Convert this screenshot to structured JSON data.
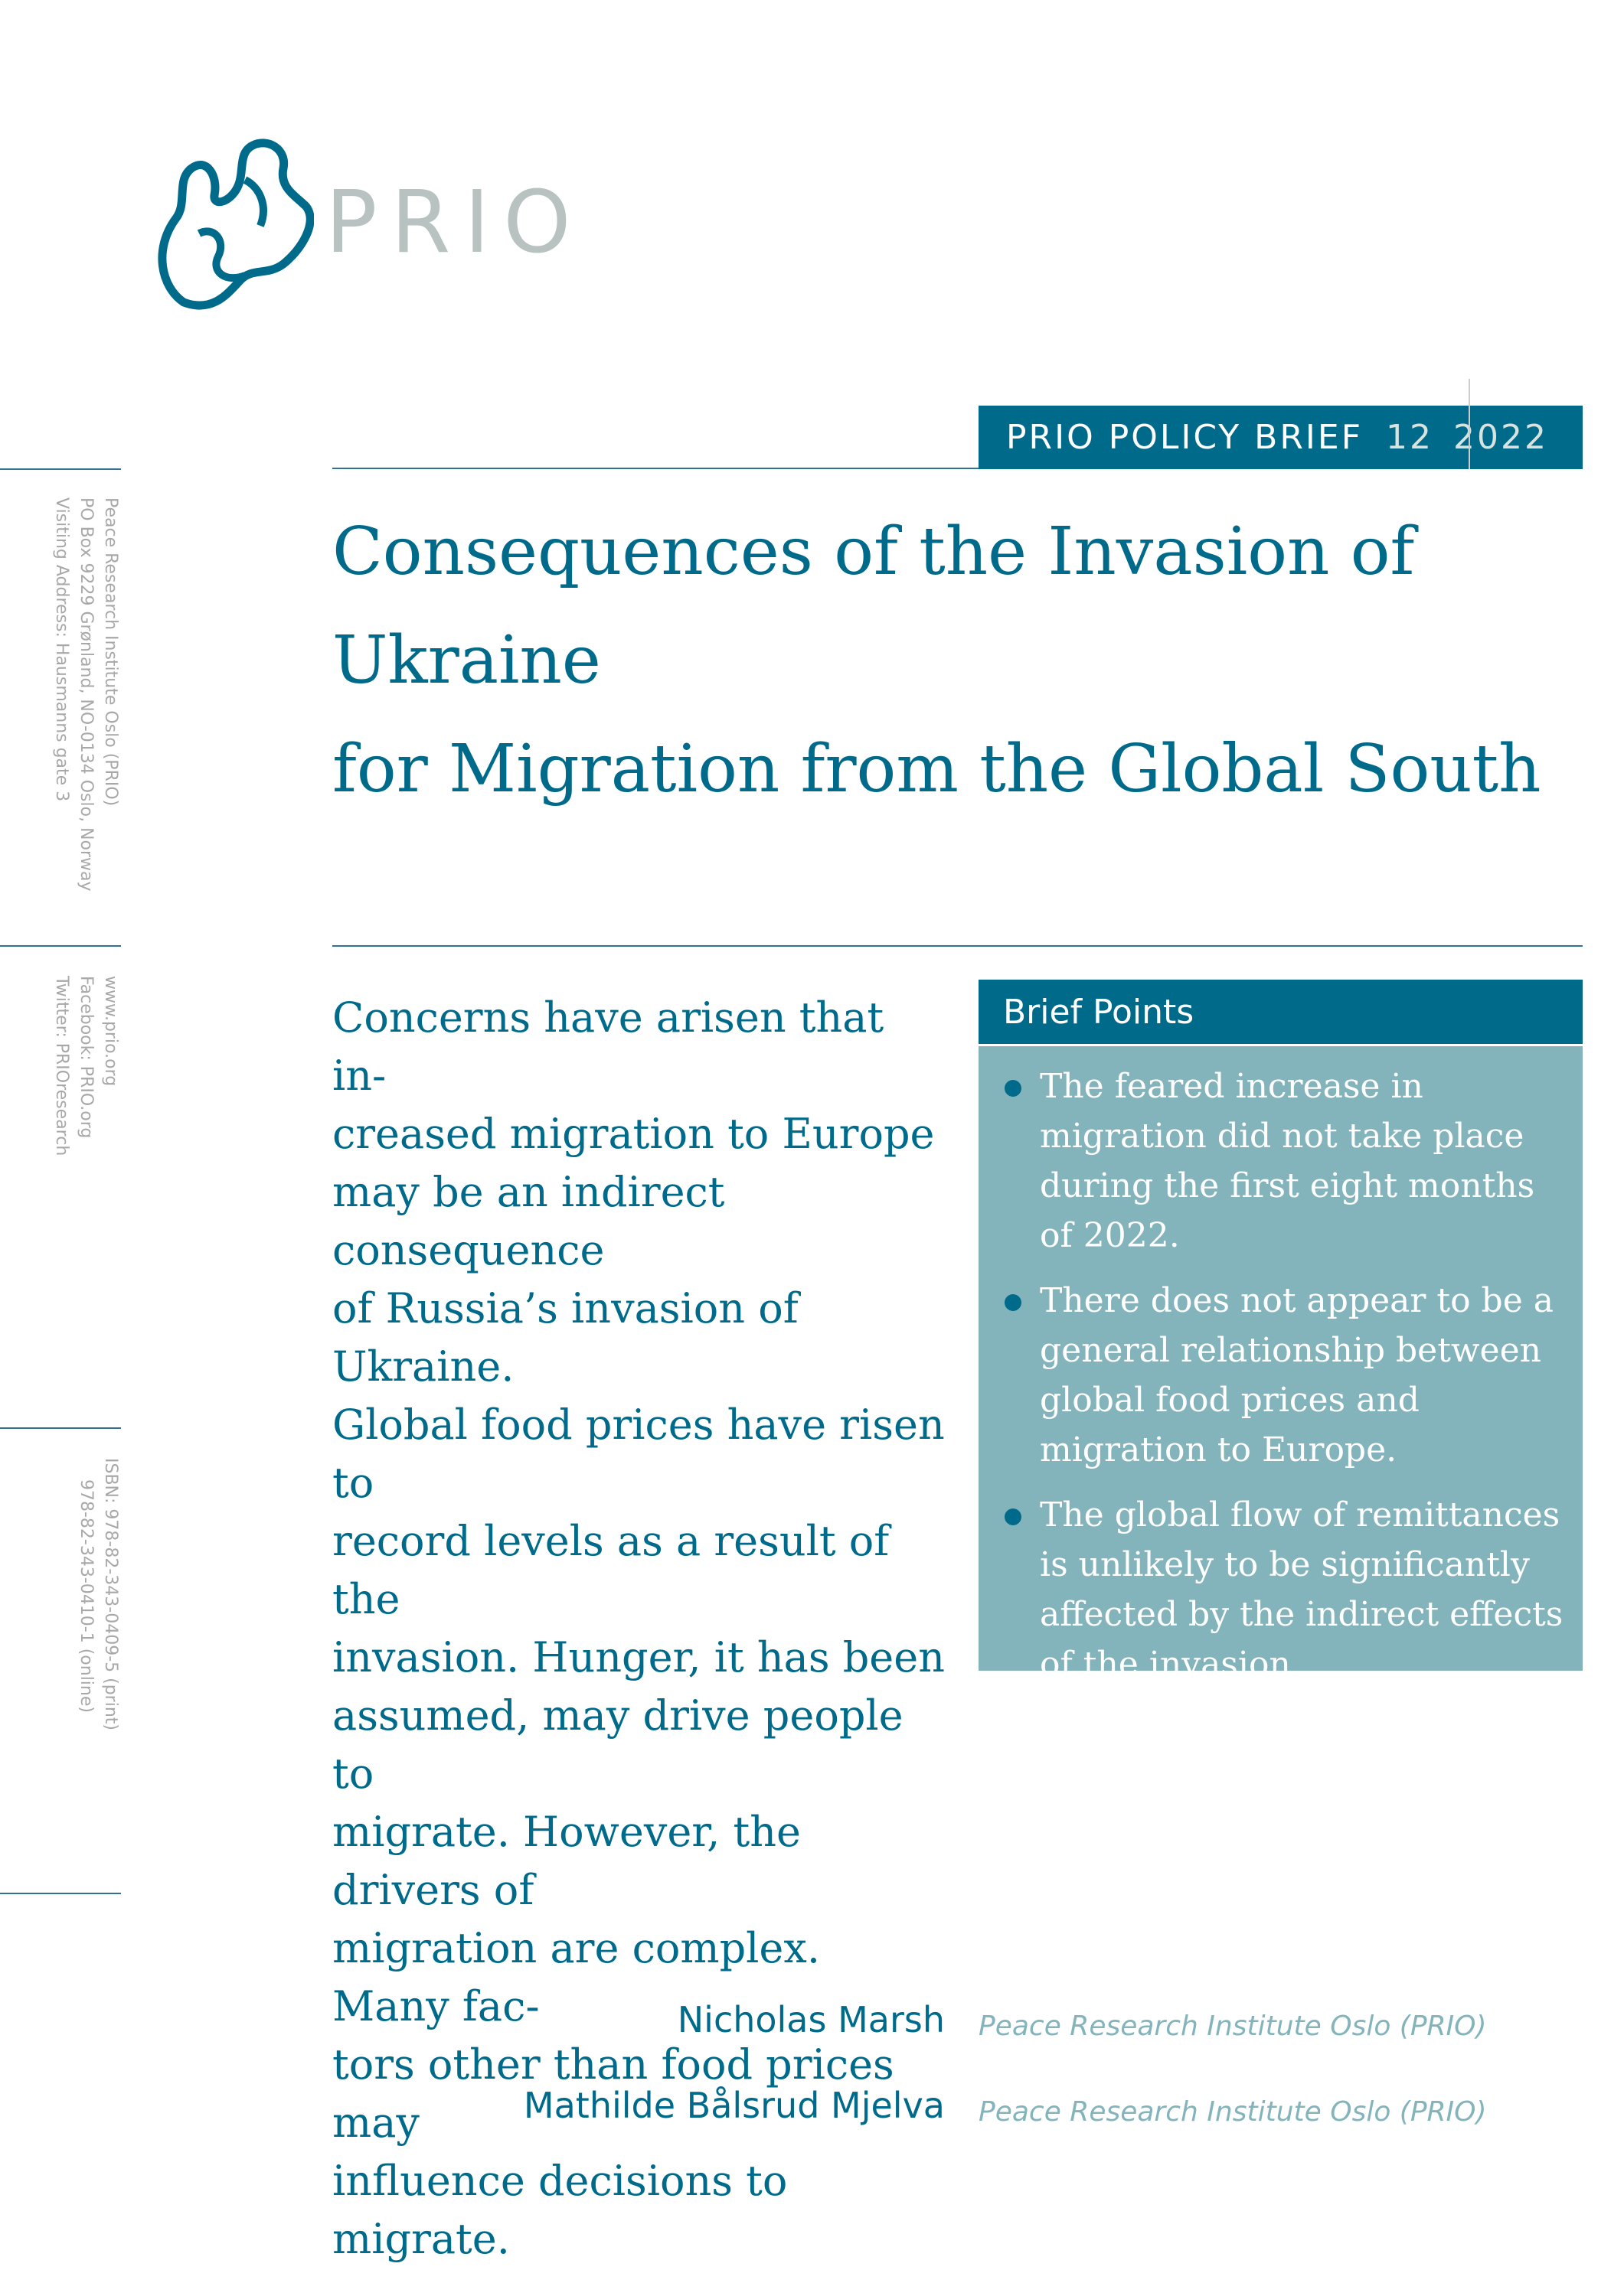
{
  "logo": {
    "text": "PRIO",
    "colors": {
      "mark": "#006a8b",
      "text": "#b8c2c0"
    }
  },
  "banner": {
    "label": "PRIO POLICY BRIEF",
    "number": "12",
    "year": "2022"
  },
  "title": [
    "Consequences of the Invasion of Ukraine",
    "for Migration from the Global South"
  ],
  "sidebar": {
    "address": [
      "Peace Research Institute Oslo (PRIO)",
      "PO Box 9229 Grønland, NO-0134 Oslo, Norway",
      "Visiting Address: Hausmanns gate 3"
    ],
    "web": [
      "www.prio.org",
      "Facebook: PRIO.org",
      "Twitter: PRIOresearch"
    ],
    "isbn": [
      "ISBN: 978-82-343-0409-5 (print)",
      "978-82-343-0410-1 (online)"
    ]
  },
  "intro": [
    "Concerns have arisen that in-",
    "creased migration to Europe",
    "may be an indirect consequence",
    "of Russia’s invasion of Ukraine.",
    "Global food prices have risen to",
    "record levels as a result of the",
    "invasion. Hunger, it has been",
    "assumed, may drive people to",
    "migrate. However, the drivers of",
    "migration are complex. Many fac-",
    "tors other than food prices may",
    "influence decisions to migrate."
  ],
  "brief_points": {
    "heading": "Brief Points",
    "items": [
      "The feared increase in migration did not take place during the first eight months of 2022.",
      "There does not appear to be a general relationship between global food prices and migration to Europe.",
      "The global flow of remittances is unlikely to be significantly affected by the indirect effects of the invasion."
    ]
  },
  "authors": [
    {
      "name": "Nicholas Marsh",
      "affiliation": "Peace Research Institute Oslo (PRIO)"
    },
    {
      "name": "Mathilde Bålsrud Mjelva",
      "affiliation": "Peace Research Institute Oslo (PRIO)"
    }
  ],
  "colors": {
    "accent": "#006a8b",
    "box": "#84b4bb"
  }
}
